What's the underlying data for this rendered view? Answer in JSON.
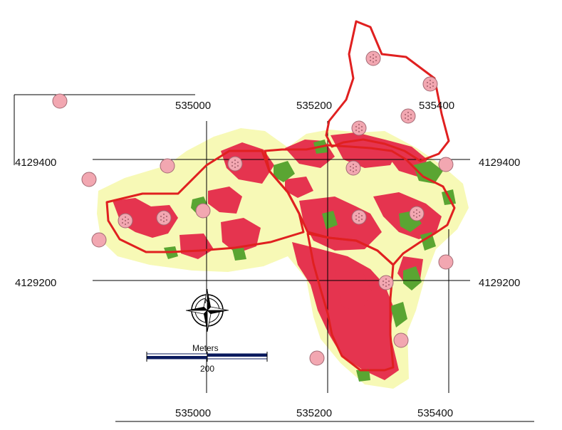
{
  "colors": {
    "background_area": "#f7f9b6",
    "landcover_red": "#e5344f",
    "landcover_green": "#5aa532",
    "boundary": "#e02020",
    "sample_point_fill": "#f2a7b1",
    "sample_point_stroke": "#a26a74",
    "grid": "#000000",
    "scalebar_dark": "#0b1b5e"
  },
  "grid_labels": {
    "x_top": [
      "535000",
      "535200",
      "535400"
    ],
    "x_bottom": [
      "535000",
      "535200",
      "535400"
    ],
    "y_left": [
      "4129400",
      "4129200"
    ],
    "y_right": [
      "4129400",
      "4129200"
    ]
  },
  "scale_bar": {
    "unit_label": "Meters",
    "value_label": "200"
  },
  "north_arrow": {
    "letter": "N",
    "icon": "compass-rose-icon"
  },
  "sample_points": {
    "count_plain": 9,
    "count_dotted": 11
  }
}
